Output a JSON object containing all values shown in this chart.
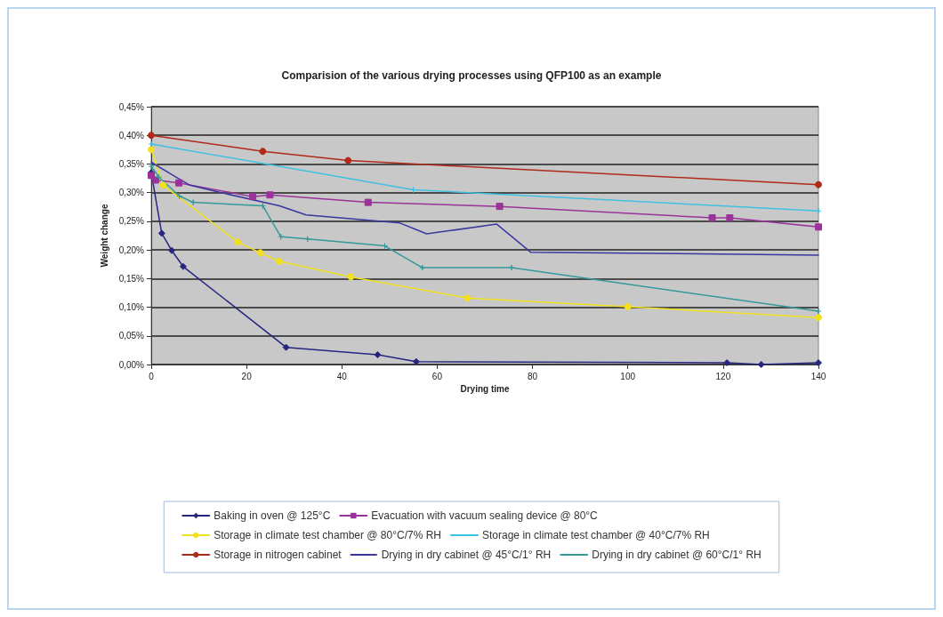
{
  "chart_data": {
    "type": "line",
    "title": "Comparision of the various drying processes using QFP100 as an example",
    "xlabel": "Drying time",
    "ylabel": "Weight change",
    "xlim": [
      0,
      140
    ],
    "xticks": [
      0,
      20,
      40,
      60,
      80,
      100,
      120,
      140
    ],
    "ylim": [
      0,
      0.45
    ],
    "yticks": [
      {
        "value": 0,
        "label": "0,00%"
      },
      {
        "value": 0.05,
        "label": "0,05%"
      },
      {
        "value": 0.1,
        "label": "0,10%"
      },
      {
        "value": 0.15,
        "label": "0,15%"
      },
      {
        "value": 0.2,
        "label": "0,20%"
      },
      {
        "value": 0.25,
        "label": "0,25%"
      },
      {
        "value": 0.3,
        "label": "0,30%"
      },
      {
        "value": 0.35,
        "label": "0,35%"
      },
      {
        "value": 0.4,
        "label": "0,40%"
      },
      {
        "value": 0.45,
        "label": "0,45%"
      }
    ],
    "grid": "y",
    "legend": "bottom",
    "line_style": "solid",
    "series": [
      {
        "name": "Baking in oven @ 125°C",
        "color": "#262680",
        "marker": "diamond",
        "x": [
          0,
          2.2,
          4.3,
          6.7,
          28.3,
          47.5,
          55.6,
          120.8,
          128,
          140
        ],
        "values": [
          0.335,
          0.229,
          0.199,
          0.171,
          0.03,
          0.017,
          0.005,
          0.003,
          0,
          0.003
        ]
      },
      {
        "name": "Evacuation with vacuum sealing device @ 80°C",
        "color": "#993399",
        "marker": "square",
        "x": [
          0,
          0.9,
          5.8,
          21.3,
          24.9,
          45.5,
          73.1,
          117.7,
          121.4,
          140
        ],
        "values": [
          0.33,
          0.322,
          0.317,
          0.293,
          0.296,
          0.283,
          0.276,
          0.256,
          0.256,
          0.24
        ]
      },
      {
        "name": "Storage in climate test chamber @ 80°C/7% RH",
        "color": "#f0e020",
        "marker": "circle",
        "x": [
          0,
          2.5,
          18.1,
          22.9,
          26.9,
          41.9,
          66.3,
          100,
          140
        ],
        "values": [
          0.375,
          0.313,
          0.214,
          0.195,
          0.18,
          0.153,
          0.116,
          0.101,
          0.082
        ]
      },
      {
        "name": "Storage in climate test chamber @ 40°C/7% RH",
        "color": "#40c0e0",
        "marker": "cross",
        "x": [
          0,
          55,
          140
        ],
        "values": [
          0.385,
          0.305,
          0.268
        ]
      },
      {
        "name": "Storage in nitrogen cabinet",
        "color": "#b02a1a",
        "marker": "circle",
        "x": [
          0,
          23.4,
          41.3,
          140
        ],
        "values": [
          0.4,
          0.372,
          0.356,
          0.314
        ]
      },
      {
        "name": "Drying in dry cabinet @ 45°C/1° RH",
        "color": "#3838a0",
        "marker": "none",
        "x": [
          0,
          4.4,
          8.1,
          14.7,
          26.9,
          32.5,
          52.2,
          57.8,
          72.5,
          79.6,
          140
        ],
        "values": [
          0.353,
          0.331,
          0.313,
          0.3,
          0.277,
          0.261,
          0.247,
          0.228,
          0.245,
          0.196,
          0.191
        ]
      },
      {
        "name": "Drying in dry cabinet @ 60°C/1° RH",
        "color": "#339999",
        "marker": "cross",
        "x": [
          0,
          1.6,
          5.9,
          8.8,
          23.4,
          27.2,
          32.8,
          49,
          56.9,
          75.6,
          140
        ],
        "values": [
          0.346,
          0.327,
          0.294,
          0.283,
          0.277,
          0.223,
          0.219,
          0.207,
          0.169,
          0.169,
          0.093
        ]
      }
    ]
  }
}
